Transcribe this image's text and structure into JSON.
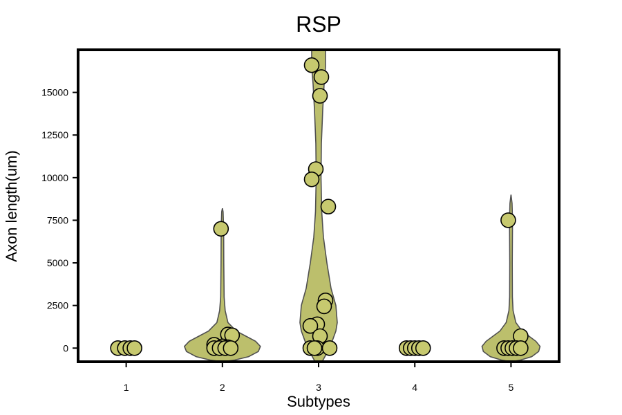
{
  "chart_data": {
    "type": "violin",
    "title": "RSP",
    "xlabel": "Subtypes",
    "ylabel": "Axon length(um)",
    "categories": [
      "1",
      "2",
      "3",
      "4",
      "5"
    ],
    "yticks": [
      0,
      2500,
      5000,
      7500,
      10000,
      12500,
      15000
    ],
    "ylim": [
      -800,
      17500
    ],
    "grid": false,
    "color": "#bcbf6c",
    "point_color": "#c7c96f",
    "points": [
      [
        0,
        0,
        0,
        0
      ],
      [
        7000,
        800,
        750,
        200,
        100,
        50,
        0,
        0,
        0,
        0
      ],
      [
        16600,
        15900,
        14800,
        10500,
        9900,
        8300,
        2800,
        2450,
        1400,
        1300,
        700,
        0,
        0,
        0,
        0
      ],
      [
        0,
        0,
        0,
        0,
        0
      ],
      [
        7500,
        700,
        0,
        0,
        0,
        0,
        0
      ]
    ],
    "violin_extent": [
      [
        0,
        0
      ],
      [
        -800,
        8200
      ],
      [
        -1500,
        17600
      ],
      [
        0,
        0
      ],
      [
        -800,
        9000
      ]
    ]
  }
}
